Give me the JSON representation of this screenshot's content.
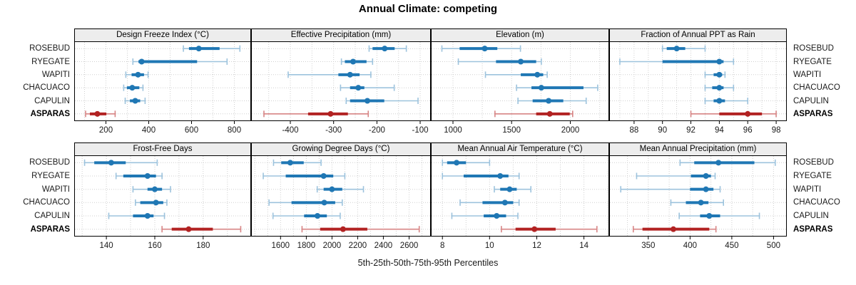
{
  "title": "Annual Climate: competing",
  "caption": "5th-25th-50th-75th-95th Percentiles",
  "sites": [
    "ROSEBUD",
    "RYEGATE",
    "WAPITI",
    "CHACUACO",
    "CAPULIN",
    "ASPARAS"
  ],
  "highlight_site": "ASPARAS",
  "colors": {
    "normal": "#1f77b4",
    "normal_light": "#9dc3dd",
    "highlight": "#b22222",
    "highlight_light": "#d78585",
    "header_bg": "#ededed",
    "grid": "#cfcfcf",
    "border": "#000000"
  },
  "chart_data": [
    {
      "type": "scatter",
      "style": "dot-with-percentile-whiskers",
      "title": "Design Freeze Index (°C)",
      "row": 0,
      "col": 0,
      "xlim": [
        55,
        875
      ],
      "ticks": [
        200,
        400,
        600,
        800
      ],
      "grid_step": 100,
      "percentiles": [
        5,
        25,
        50,
        75,
        95
      ],
      "series": [
        {
          "site": "ROSEBUD",
          "values": [
            562,
            588,
            634,
            731,
            826
          ]
        },
        {
          "site": "RYEGATE",
          "values": [
            326,
            352,
            367,
            626,
            766
          ]
        },
        {
          "site": "WAPITI",
          "values": [
            293,
            320,
            350,
            378,
            397
          ]
        },
        {
          "site": "CHACUACO",
          "values": [
            283,
            298,
            323,
            356,
            373
          ]
        },
        {
          "site": "CAPULIN",
          "values": [
            290,
            312,
            337,
            360,
            383
          ]
        },
        {
          "site": "ASPARAS",
          "values": [
            105,
            125,
            160,
            202,
            243
          ]
        }
      ]
    },
    {
      "type": "scatter",
      "style": "dot-with-percentile-whiskers",
      "title": "Effective Precipitation (mm)",
      "row": 0,
      "col": 1,
      "xlim": [
        -489,
        -77
      ],
      "ticks": [
        -400,
        -300,
        -200,
        -100
      ],
      "grid_step": 50,
      "percentiles": [
        5,
        25,
        50,
        75,
        95
      ],
      "series": [
        {
          "site": "ROSEBUD",
          "values": [
            -218,
            -210,
            -182,
            -159,
            -132
          ]
        },
        {
          "site": "RYEGATE",
          "values": [
            -282,
            -274,
            -255,
            -224,
            -210
          ]
        },
        {
          "site": "WAPITI",
          "values": [
            -405,
            -289,
            -262,
            -240,
            -214
          ]
        },
        {
          "site": "CHACUACO",
          "values": [
            -284,
            -262,
            -243,
            -229,
            -160
          ]
        },
        {
          "site": "CAPULIN",
          "values": [
            -271,
            -262,
            -222,
            -183,
            -105
          ]
        },
        {
          "site": "ASPARAS",
          "values": [
            -461,
            -359,
            -307,
            -267,
            -220
          ]
        }
      ]
    },
    {
      "type": "scatter",
      "style": "dot-with-percentile-whiskers",
      "title": "Elevation (m)",
      "row": 0,
      "col": 2,
      "xlim": [
        818,
        2325
      ],
      "ticks": [
        1000,
        1500,
        2000
      ],
      "grid_step": 250,
      "percentiles": [
        5,
        25,
        50,
        75,
        95
      ],
      "series": [
        {
          "site": "ROSEBUD",
          "values": [
            906,
            1057,
            1271,
            1378,
            1575
          ]
        },
        {
          "site": "RYEGATE",
          "values": [
            1046,
            1367,
            1578,
            1709,
            1753
          ]
        },
        {
          "site": "WAPITI",
          "values": [
            1277,
            1578,
            1719,
            1769,
            1803
          ]
        },
        {
          "site": "CHACUACO",
          "values": [
            1542,
            1669,
            1753,
            2112,
            2233
          ]
        },
        {
          "site": "CAPULIN",
          "values": [
            1554,
            1679,
            1815,
            1940,
            2135
          ]
        },
        {
          "site": "ASPARAS",
          "values": [
            1358,
            1709,
            1825,
            1995,
            2020
          ]
        }
      ]
    },
    {
      "type": "scatter",
      "style": "dot-with-percentile-whiskers",
      "title": "Fraction of Annual PPT as Rain",
      "row": 0,
      "col": 3,
      "xlim": [
        86.3,
        98.7
      ],
      "ticks": [
        88,
        90,
        92,
        94,
        96,
        98
      ],
      "grid_step": 1,
      "percentiles": [
        5,
        25,
        50,
        75,
        95
      ],
      "series": [
        {
          "site": "ROSEBUD",
          "values": [
            90,
            90.3,
            91,
            91.6,
            93
          ]
        },
        {
          "site": "RYEGATE",
          "values": [
            87,
            90,
            94,
            94.3,
            95
          ]
        },
        {
          "site": "WAPITI",
          "values": [
            93,
            93.6,
            94,
            94.2,
            94.4
          ]
        },
        {
          "site": "CHACUACO",
          "values": [
            93,
            93.5,
            94,
            94.3,
            95
          ]
        },
        {
          "site": "CAPULIN",
          "values": [
            93,
            93.6,
            94,
            94.4,
            96
          ]
        },
        {
          "site": "ASPARAS",
          "values": [
            92,
            94,
            96,
            97,
            98
          ]
        }
      ]
    },
    {
      "type": "scatter",
      "style": "dot-with-percentile-whiskers",
      "title": "Frost-Free Days",
      "row": 1,
      "col": 0,
      "xlim": [
        127,
        199.5
      ],
      "ticks": [
        140,
        160,
        180
      ],
      "grid_step": 10,
      "percentiles": [
        5,
        25,
        50,
        75,
        95
      ],
      "series": [
        {
          "site": "ROSEBUD",
          "values": [
            131,
            135,
            142,
            148,
            161
          ]
        },
        {
          "site": "RYEGATE",
          "values": [
            144,
            147,
            157,
            160.5,
            163
          ]
        },
        {
          "site": "WAPITI",
          "values": [
            151,
            157,
            160,
            163,
            166.5
          ]
        },
        {
          "site": "CHACUACO",
          "values": [
            152,
            154,
            160.5,
            163.5,
            165
          ]
        },
        {
          "site": "CAPULIN",
          "values": [
            141,
            151,
            157,
            159.5,
            164
          ]
        },
        {
          "site": "ASPARAS",
          "values": [
            163,
            167,
            174,
            184,
            195.5
          ]
        }
      ]
    },
    {
      "type": "scatter",
      "style": "dot-with-percentile-whiskers",
      "title": "Growing Degree Days (°C)",
      "row": 1,
      "col": 1,
      "xlim": [
        1376,
        2764
      ],
      "ticks": [
        1600,
        1800,
        2000,
        2200,
        2400,
        2600
      ],
      "grid_step": 100,
      "percentiles": [
        5,
        25,
        50,
        75,
        95
      ],
      "series": [
        {
          "site": "ROSEBUD",
          "values": [
            1545,
            1605,
            1675,
            1780,
            1915
          ]
        },
        {
          "site": "RYEGATE",
          "values": [
            1465,
            1640,
            1935,
            2010,
            2100
          ]
        },
        {
          "site": "WAPITI",
          "values": [
            1885,
            1935,
            2000,
            2080,
            2245
          ]
        },
        {
          "site": "CHACUACO",
          "values": [
            1510,
            1685,
            1940,
            2025,
            2080
          ]
        },
        {
          "site": "CAPULIN",
          "values": [
            1541,
            1783,
            1887,
            1960,
            2064
          ]
        },
        {
          "site": "ASPARAS",
          "values": [
            1767,
            1908,
            2086,
            2275,
            2679
          ]
        }
      ]
    },
    {
      "type": "scatter",
      "style": "dot-with-percentile-whiskers",
      "title": "Mean Annual Air Temperature (°C)",
      "row": 1,
      "col": 2,
      "xlim": [
        7.54,
        15.04
      ],
      "ticks": [
        8,
        10,
        12,
        14
      ],
      "grid_step": 1,
      "percentiles": [
        5,
        25,
        50,
        75,
        95
      ],
      "series": [
        {
          "site": "ROSEBUD",
          "values": [
            8.0,
            8.2,
            8.6,
            9.0,
            10.0
          ]
        },
        {
          "site": "RYEGATE",
          "values": [
            8.0,
            8.9,
            10.45,
            10.8,
            11.25
          ]
        },
        {
          "site": "WAPITI",
          "values": [
            10.2,
            10.45,
            10.85,
            11.15,
            11.75
          ]
        },
        {
          "site": "CHACUACO",
          "values": [
            8.75,
            9.7,
            10.65,
            11.0,
            11.25
          ]
        },
        {
          "site": "CAPULIN",
          "values": [
            8.4,
            9.75,
            10.3,
            10.7,
            11.2
          ]
        },
        {
          "site": "ASPARAS",
          "values": [
            10.5,
            11.1,
            11.9,
            12.8,
            14.55
          ]
        }
      ]
    },
    {
      "type": "scatter",
      "style": "dot-with-percentile-whiskers",
      "title": "Mean Annual Precipitation (mm)",
      "row": 1,
      "col": 3,
      "xlim": [
        304,
        515
      ],
      "ticks": [
        350,
        400,
        450,
        500
      ],
      "grid_step": 25,
      "percentiles": [
        5,
        25,
        50,
        75,
        95
      ],
      "series": [
        {
          "site": "ROSEBUD",
          "values": [
            388,
            405,
            434,
            477,
            502
          ]
        },
        {
          "site": "RYEGATE",
          "values": [
            336,
            401,
            419,
            425,
            430
          ]
        },
        {
          "site": "WAPITI",
          "values": [
            317,
            400,
            419,
            428,
            436
          ]
        },
        {
          "site": "CHACUACO",
          "values": [
            377,
            395,
            413,
            422,
            440
          ]
        },
        {
          "site": "CAPULIN",
          "values": [
            387,
            412,
            423,
            436,
            483
          ]
        },
        {
          "site": "ASPARAS",
          "values": [
            332,
            343,
            380,
            423,
            431
          ]
        }
      ]
    }
  ]
}
